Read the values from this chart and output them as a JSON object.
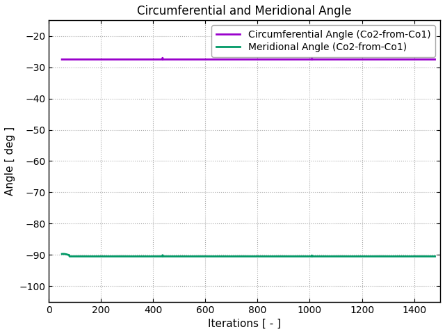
{
  "title": "Circumferential and Meridional Angle",
  "xlabel": "Iterations [ - ]",
  "ylabel": "Angle [ deg ]",
  "xlim": [
    0,
    1500
  ],
  "ylim": [
    -105,
    -15
  ],
  "yticks": [
    -20,
    -30,
    -40,
    -50,
    -60,
    -70,
    -80,
    -90,
    -100
  ],
  "xticks": [
    0,
    200,
    400,
    600,
    800,
    1000,
    1200,
    1400
  ],
  "circ_label": "Circumferential Angle (Co2-from-Co1)",
  "merid_label": "Meridional Angle (Co2-from-Co1)",
  "circ_color": "#9900cc",
  "merid_color": "#009966",
  "circ_value": -27.5,
  "merid_value": -90.5,
  "x_start": 50,
  "x_end": 1480,
  "n_points": 1480,
  "bg_color": "#ffffff",
  "grid_color": "#aaaaaa",
  "title_fontsize": 12,
  "label_fontsize": 11,
  "tick_fontsize": 10,
  "legend_fontsize": 10,
  "line_width": 2.0,
  "figsize": [
    6.4,
    4.8
  ],
  "dpi": 100
}
